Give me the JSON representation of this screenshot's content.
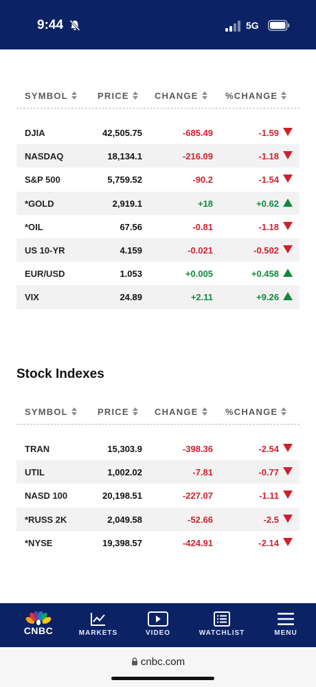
{
  "status_bar": {
    "time": "9:44",
    "network": "5G",
    "icons": [
      "bell-off-icon",
      "signal-icon",
      "battery-icon"
    ]
  },
  "columns": {
    "symbol": "SYMBOL",
    "price": "PRICE",
    "change": "CHANGE",
    "pct_change": "%CHANGE"
  },
  "markets_table": {
    "rows": [
      {
        "symbol": "DJIA",
        "price": "42,505.75",
        "change": "-685.49",
        "pct": "-1.59",
        "direction": "down"
      },
      {
        "symbol": "NASDAQ",
        "price": "18,134.1",
        "change": "-216.09",
        "pct": "-1.18",
        "direction": "down"
      },
      {
        "symbol": "S&P 500",
        "price": "5,759.52",
        "change": "-90.2",
        "pct": "-1.54",
        "direction": "down"
      },
      {
        "symbol": "*GOLD",
        "price": "2,919.1",
        "change": "+18",
        "pct": "+0.62",
        "direction": "up"
      },
      {
        "symbol": "*OIL",
        "price": "67.56",
        "change": "-0.81",
        "pct": "-1.18",
        "direction": "down"
      },
      {
        "symbol": "US 10-YR",
        "price": "4.159",
        "change": "-0.021",
        "pct": "-0.502",
        "direction": "down"
      },
      {
        "symbol": "EUR/USD",
        "price": "1.053",
        "change": "+0.005",
        "pct": "+0.458",
        "direction": "up"
      },
      {
        "symbol": "VIX",
        "price": "24.89",
        "change": "+2.11",
        "pct": "+9.26",
        "direction": "up"
      }
    ]
  },
  "stock_indexes": {
    "title": "Stock Indexes",
    "rows": [
      {
        "symbol": "TRAN",
        "price": "15,303.9",
        "change": "-398.36",
        "pct": "-2.54",
        "direction": "down"
      },
      {
        "symbol": "UTIL",
        "price": "1,002.02",
        "change": "-7.81",
        "pct": "-0.77",
        "direction": "down"
      },
      {
        "symbol": "NASD 100",
        "price": "20,198.51",
        "change": "-227.07",
        "pct": "-1.11",
        "direction": "down"
      },
      {
        "symbol": "*RUSS 2K",
        "price": "2,049.58",
        "change": "-52.66",
        "pct": "-2.5",
        "direction": "down"
      },
      {
        "symbol": "*NYSE",
        "price": "19,398.57",
        "change": "-424.91",
        "pct": "-2.14",
        "direction": "down"
      }
    ]
  },
  "bottom_nav": {
    "logo": "CNBC",
    "markets": "MARKETS",
    "video": "VIDEO",
    "watchlist": "WATCHLIST",
    "menu": "MENU"
  },
  "url_bar": {
    "url": "cnbc.com"
  },
  "colors": {
    "navy": "#0b2265",
    "negative": "#d0202e",
    "positive": "#0f8a3c",
    "row_alt": "#f2f2f2"
  }
}
